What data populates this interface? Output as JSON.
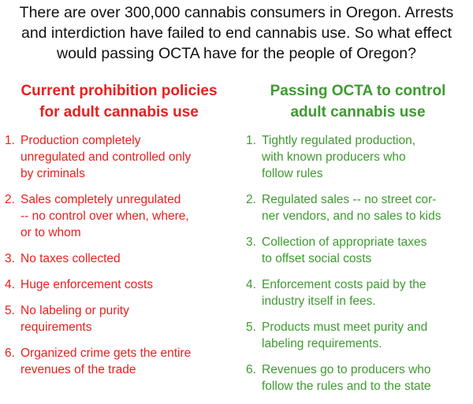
{
  "intro": "There are over 300,000 cannabis consumers in Oregon.  Arrests\nand interdiction have failed to end cannabis use.  So what effect\nwould passing OCTA have for the people of Oregon?",
  "left_column": {
    "title": "Current prohibition policies\nfor adult cannabis use",
    "color": "#e8201e",
    "items": [
      {
        "num": "1.",
        "text": "Production completely\nunregulated and controlled only\nby criminals"
      },
      {
        "num": "2.",
        "text": "Sales completely unregulated\n-- no control over when, where,\nor to whom"
      },
      {
        "num": "3.",
        "text": "No taxes collected"
      },
      {
        "num": "4.",
        "text": "Huge enforcement costs"
      },
      {
        "num": "5.",
        "text": "No labeling or purity\nrequirements"
      },
      {
        "num": "6.",
        "text": "Organized crime gets the entire\nrevenues of the trade"
      }
    ]
  },
  "right_column": {
    "title": "Passing OCTA to control\nadult cannabis use",
    "color": "#3e9a30",
    "items": [
      {
        "num": "1.",
        "text": "Tightly regulated production,\nwith known producers who\nfollow rules"
      },
      {
        "num": "2.",
        "text": "Regulated sales -- no street cor-\nner vendors, and no sales to kids"
      },
      {
        "num": "3.",
        "text": "Collection of appropriate taxes\nto offset social costs"
      },
      {
        "num": "4.",
        "text": "Enforcement costs paid by the\nindustry itself in fees."
      },
      {
        "num": "5.",
        "text": "Products must meet purity and\nlabeling requirements."
      },
      {
        "num": "6.",
        "text": "Revenues go to producers who\nfollow the rules and to the state"
      }
    ]
  }
}
